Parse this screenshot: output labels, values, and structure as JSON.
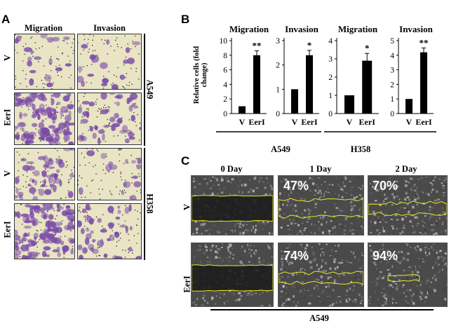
{
  "panel_a": {
    "letter": "A",
    "col_headers": [
      "Migration",
      "Invasion"
    ],
    "rows": [
      {
        "label": "V",
        "migration": "sparse",
        "invasion": "sparse"
      },
      {
        "label": "EerI",
        "migration": "dense",
        "invasion": "moderate"
      },
      {
        "label": "V",
        "migration": "moderate",
        "invasion": "sparse"
      },
      {
        "label": "EerI",
        "migration": "dense",
        "invasion": "moderate"
      }
    ],
    "cell_lines": [
      "A549",
      "H358"
    ],
    "colors": {
      "background": "#e8e4c4",
      "stain": "#7a4aa8"
    }
  },
  "panel_b": {
    "letter": "B",
    "ylabel": "Relative cells (fold change)",
    "groups": [
      "A549",
      "H358"
    ]
  },
  "panel_c": {
    "letter": "C",
    "col_headers": [
      "0 Day",
      "1 Day",
      "2 Day"
    ],
    "row_labels": [
      "V",
      "EerI"
    ],
    "percent_rows": [
      [
        "",
        "47%",
        "70%"
      ],
      [
        "",
        "74%",
        "94%"
      ]
    ],
    "cell_line": "A549",
    "outline_color": "#e8e820"
  },
  "chart_data": [
    {
      "type": "bar",
      "title": "Migration",
      "cell_line": "A549",
      "categories": [
        "V",
        "EerI"
      ],
      "values": [
        1,
        8
      ],
      "errors": [
        0,
        0.6
      ],
      "significance": [
        "",
        "**"
      ],
      "ylim": [
        0,
        10
      ],
      "yticks": [
        0,
        2,
        4,
        6,
        8,
        10
      ]
    },
    {
      "type": "bar",
      "title": "Invasion",
      "cell_line": "A549",
      "categories": [
        "V",
        "EerI"
      ],
      "values": [
        1,
        2.4
      ],
      "errors": [
        0,
        0.2
      ],
      "significance": [
        "",
        "*"
      ],
      "ylim": [
        0,
        3
      ],
      "yticks": [
        0,
        1,
        2,
        3
      ]
    },
    {
      "type": "bar",
      "title": "Migration",
      "cell_line": "H358",
      "categories": [
        "V",
        "EerI"
      ],
      "values": [
        1,
        2.9
      ],
      "errors": [
        0,
        0.4
      ],
      "significance": [
        "",
        "*"
      ],
      "ylim": [
        0,
        4
      ],
      "yticks": [
        0,
        1,
        2,
        3,
        4
      ]
    },
    {
      "type": "bar",
      "title": "Invasion",
      "cell_line": "H358",
      "categories": [
        "V",
        "EerI"
      ],
      "values": [
        1,
        4.2
      ],
      "errors": [
        0,
        0.3
      ],
      "significance": [
        "",
        "**"
      ],
      "ylim": [
        0,
        5
      ],
      "yticks": [
        0,
        1,
        2,
        3,
        4,
        5
      ]
    }
  ]
}
